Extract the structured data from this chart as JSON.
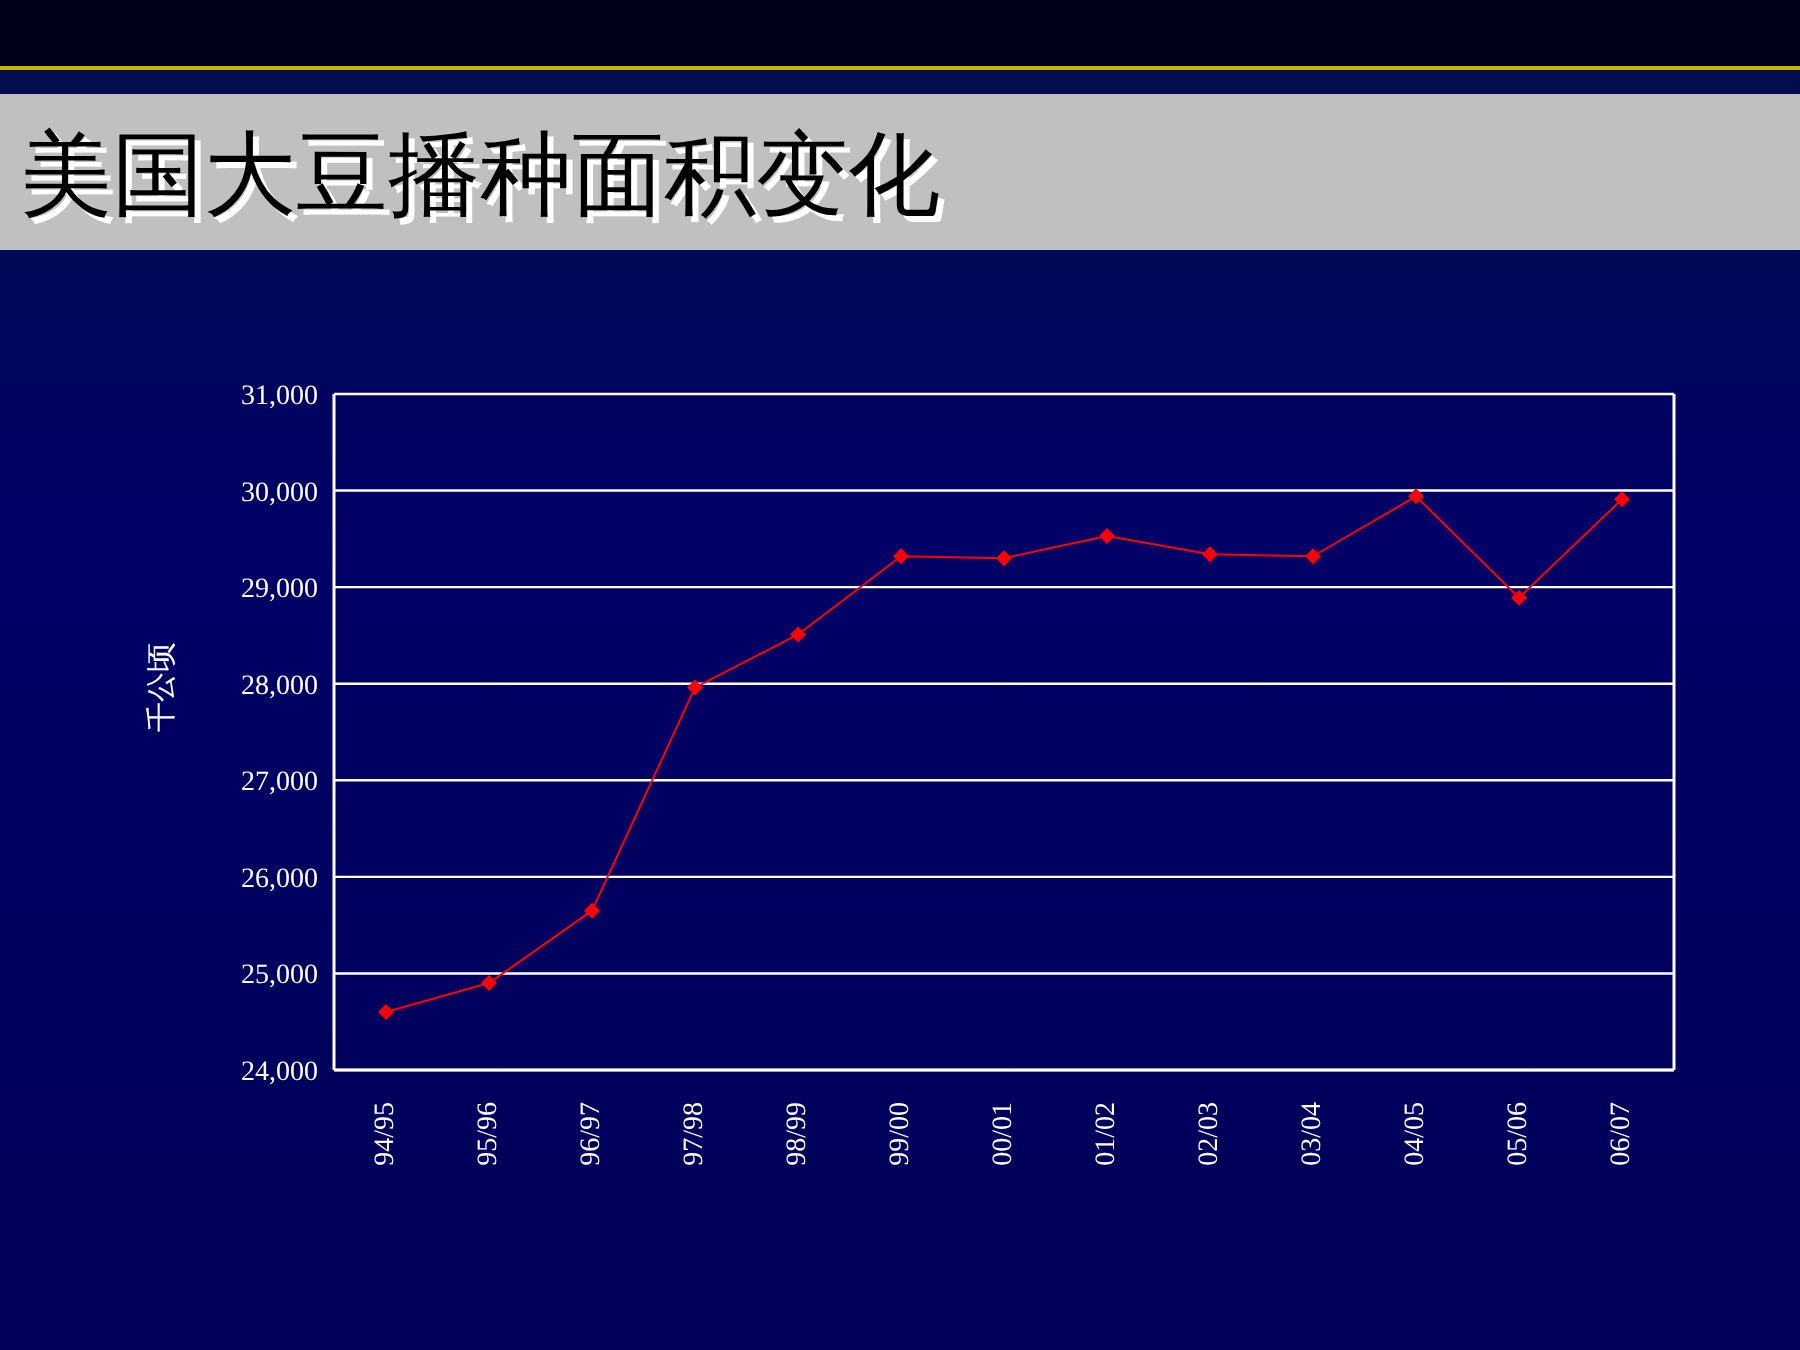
{
  "chart_data": {
    "type": "line",
    "title": "美国大豆播种面积变化",
    "ylabel": "千公顷",
    "categories": [
      "94/95",
      "95/96",
      "96/97",
      "97/98",
      "98/99",
      "99/00",
      "00/01",
      "01/02",
      "02/03",
      "03/04",
      "04/05",
      "05/06",
      "06/07"
    ],
    "series": [
      {
        "color": "#ff0000",
        "values": [
          24600,
          24900,
          25650,
          27960,
          28510,
          29320,
          29300,
          29530,
          29340,
          29320,
          29940,
          28890,
          29910
        ]
      }
    ],
    "ylim": [
      24000,
      31000
    ],
    "yticks": [
      {
        "value": 24000,
        "label": "24,000"
      },
      {
        "value": 25000,
        "label": "25,000"
      },
      {
        "value": 26000,
        "label": "26,000"
      },
      {
        "value": 27000,
        "label": "27,000"
      },
      {
        "value": 28000,
        "label": "28,000"
      },
      {
        "value": 29000,
        "label": "29,000"
      },
      {
        "value": 30000,
        "label": "30,000"
      },
      {
        "value": 31000,
        "label": "31,000"
      }
    ],
    "grid": "y",
    "legend": false,
    "marker": "diamond",
    "line_style": "solid"
  }
}
